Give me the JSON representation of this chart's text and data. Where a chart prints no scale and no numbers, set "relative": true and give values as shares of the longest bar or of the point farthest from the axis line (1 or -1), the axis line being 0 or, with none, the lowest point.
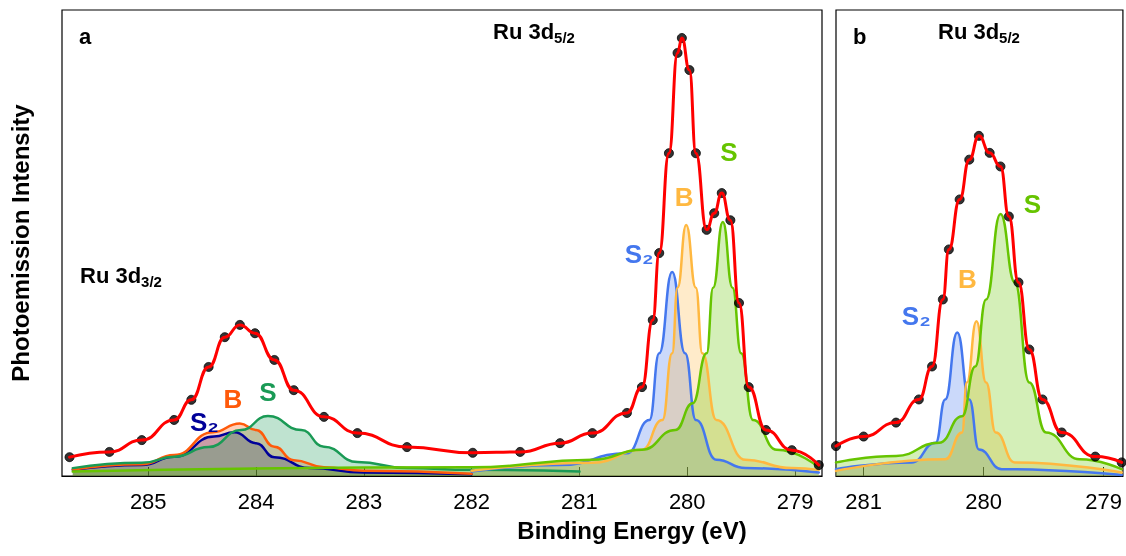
{
  "chart_data": [
    {
      "type": "line",
      "title": "a",
      "xlabel": "Binding Energy (eV)",
      "ylabel": "Photoemission Intensity",
      "annotations": [
        "Ru 3d$_{5/2}$",
        "Ru 3d$_{3/2}$"
      ],
      "relative": true,
      "xlim": [
        285.8,
        278.75
      ],
      "xticks": [
        285,
        284,
        283,
        282,
        281,
        280,
        279
      ],
      "series": [
        {
          "type": "area",
          "marker": "none",
          "name": "S₂",
          "color": "#000099",
          "x": [
            285.7,
            285.06,
            284.76,
            284.39,
            284.2,
            284.0,
            283.83,
            283.5,
            283.0,
            282.0
          ],
          "values": [
            0.014,
            0.025,
            0.044,
            0.09,
            0.1,
            0.075,
            0.043,
            0.018,
            0.008,
            0.004
          ]
        },
        {
          "type": "area",
          "marker": "none",
          "name": "B",
          "color": "#ff5a0a",
          "x": [
            285.7,
            285.06,
            284.76,
            284.4,
            284.15,
            284.0,
            283.83,
            283.65,
            283.37,
            283.0,
            282.0
          ],
          "values": [
            0.015,
            0.027,
            0.048,
            0.1,
            0.12,
            0.105,
            0.067,
            0.036,
            0.02,
            0.012,
            0.005
          ]
        },
        {
          "type": "area",
          "marker": "none",
          "name": "S",
          "color": "#1a9a55",
          "x": [
            285.7,
            285.06,
            284.76,
            284.44,
            284.14,
            283.89,
            283.58,
            283.37,
            283.06,
            282.6,
            282.0,
            281.0
          ],
          "values": [
            0.018,
            0.03,
            0.044,
            0.066,
            0.105,
            0.137,
            0.105,
            0.067,
            0.032,
            0.018,
            0.014,
            0.01
          ]
        },
        {
          "type": "area",
          "marker": "none",
          "name": "S₂",
          "color": "#4477ee",
          "x": [
            282.0,
            281.18,
            280.56,
            280.35,
            280.26,
            280.14,
            280.02,
            279.92,
            279.73,
            279.46,
            278.78
          ],
          "values": [
            0.01,
            0.025,
            0.052,
            0.128,
            0.28,
            0.466,
            0.28,
            0.128,
            0.037,
            0.018,
            0.008
          ]
        },
        {
          "type": "area",
          "marker": "none",
          "name": "B",
          "color": "#ffb840",
          "x": [
            282.0,
            280.88,
            280.42,
            280.23,
            280.14,
            280.09,
            280.01,
            279.92,
            279.86,
            279.73,
            279.46,
            279.03,
            278.78
          ],
          "values": [
            0.012,
            0.03,
            0.06,
            0.128,
            0.28,
            0.43,
            0.573,
            0.43,
            0.28,
            0.128,
            0.037,
            0.018,
            0.014
          ]
        },
        {
          "type": "area",
          "marker": "none",
          "name": "S",
          "color": "#66c400",
          "x": [
            285.7,
            282.0,
            280.88,
            280.42,
            280.11,
            279.95,
            279.82,
            279.76,
            279.67,
            279.58,
            279.5,
            279.39,
            279.17,
            278.78
          ],
          "values": [
            0.01,
            0.02,
            0.037,
            0.06,
            0.105,
            0.166,
            0.28,
            0.43,
            0.58,
            0.43,
            0.28,
            0.128,
            0.06,
            0.02
          ]
        },
        {
          "type": "scatter",
          "marker": "circle",
          "color": "#000000",
          "x": [
            285.73,
            285.36,
            285.06,
            284.76,
            284.6,
            284.44,
            284.29,
            284.15,
            284.01,
            283.83,
            283.65,
            283.37,
            283.06,
            282.6,
            281.99,
            281.55,
            281.18,
            280.88,
            280.56,
            280.42,
            280.32,
            280.26,
            280.17,
            280.09,
            280.05,
            279.98,
            279.92,
            279.82,
            279.75,
            279.68,
            279.6,
            279.52,
            279.43,
            279.27,
            279.03,
            278.78
          ],
          "values": [
            0.043,
            0.055,
            0.082,
            0.128,
            0.174,
            0.249,
            0.317,
            0.345,
            0.326,
            0.265,
            0.196,
            0.135,
            0.098,
            0.066,
            0.053,
            0.055,
            0.075,
            0.098,
            0.144,
            0.203,
            0.356,
            0.509,
            0.737,
            0.966,
            1.0,
            0.927,
            0.737,
            0.562,
            0.6,
            0.646,
            0.584,
            0.395,
            0.203,
            0.105,
            0.059,
            0.025
          ]
        },
        {
          "marker": "none",
          "color": "#ff0000",
          "x": [
            285.73,
            285.36,
            285.06,
            284.76,
            284.6,
            284.44,
            284.29,
            284.15,
            284.01,
            283.83,
            283.65,
            283.37,
            283.06,
            282.6,
            281.99,
            281.55,
            281.18,
            280.88,
            280.56,
            280.42,
            280.32,
            280.26,
            280.17,
            280.09,
            280.05,
            279.98,
            279.92,
            279.82,
            279.75,
            279.68,
            279.6,
            279.52,
            279.43,
            279.27,
            279.03,
            278.78
          ],
          "values": [
            0.043,
            0.055,
            0.082,
            0.128,
            0.174,
            0.249,
            0.317,
            0.345,
            0.326,
            0.265,
            0.196,
            0.135,
            0.098,
            0.066,
            0.053,
            0.055,
            0.075,
            0.098,
            0.144,
            0.203,
            0.356,
            0.509,
            0.737,
            0.966,
            1.0,
            0.927,
            0.737,
            0.562,
            0.6,
            0.646,
            0.584,
            0.395,
            0.203,
            0.105,
            0.059,
            0.025
          ]
        }
      ]
    },
    {
      "type": "line",
      "title": "b",
      "annotations": [
        "Ru 3d$_{5/2}$"
      ],
      "relative": true,
      "xlim": [
        281.23,
        278.84
      ],
      "xticks": [
        281,
        280,
        279
      ],
      "series": [
        {
          "type": "area",
          "marker": "none",
          "name": "S₂",
          "color": "#4477ee",
          "x": [
            281.23,
            280.6,
            280.4,
            280.32,
            280.22,
            280.12,
            280.04,
            279.85,
            278.85
          ],
          "values": [
            0.02,
            0.04,
            0.098,
            0.225,
            0.422,
            0.225,
            0.078,
            0.02,
            0.003
          ]
        },
        {
          "type": "area",
          "marker": "none",
          "name": "B",
          "color": "#ffb840",
          "x": [
            281.23,
            280.32,
            280.18,
            280.14,
            280.06,
            279.98,
            279.9,
            279.74,
            278.85
          ],
          "values": [
            0.015,
            0.049,
            0.128,
            0.275,
            0.455,
            0.275,
            0.128,
            0.04,
            0.01
          ]
        },
        {
          "type": "area",
          "marker": "none",
          "name": "S",
          "color": "#66c400",
          "x": [
            281.23,
            280.73,
            280.37,
            280.18,
            280.07,
            279.98,
            279.86,
            279.74,
            279.62,
            279.48,
            279.2,
            278.85
          ],
          "values": [
            0.04,
            0.059,
            0.098,
            0.176,
            0.322,
            0.519,
            0.77,
            0.569,
            0.275,
            0.128,
            0.049,
            0.02
          ]
        },
        {
          "type": "scatter",
          "marker": "circle",
          "color": "#000000",
          "x": [
            281.23,
            281.0,
            280.73,
            280.54,
            280.43,
            280.34,
            280.29,
            280.2,
            280.12,
            280.04,
            279.95,
            279.86,
            279.79,
            279.71,
            279.62,
            279.51,
            279.35,
            279.07,
            278.85
          ],
          "values": [
            0.088,
            0.116,
            0.157,
            0.225,
            0.322,
            0.519,
            0.666,
            0.813,
            0.93,
            1.0,
            0.95,
            0.91,
            0.763,
            0.569,
            0.372,
            0.225,
            0.128,
            0.057,
            0.04
          ]
        },
        {
          "marker": "none",
          "color": "#ff0000",
          "x": [
            281.23,
            281.0,
            280.73,
            280.54,
            280.43,
            280.34,
            280.29,
            280.2,
            280.12,
            280.04,
            279.95,
            279.86,
            279.79,
            279.71,
            279.62,
            279.51,
            279.35,
            279.07,
            278.85
          ],
          "values": [
            0.088,
            0.116,
            0.157,
            0.225,
            0.322,
            0.519,
            0.666,
            0.813,
            0.93,
            1.0,
            0.95,
            0.91,
            0.763,
            0.569,
            0.372,
            0.225,
            0.128,
            0.057,
            0.04
          ]
        }
      ]
    }
  ]
}
